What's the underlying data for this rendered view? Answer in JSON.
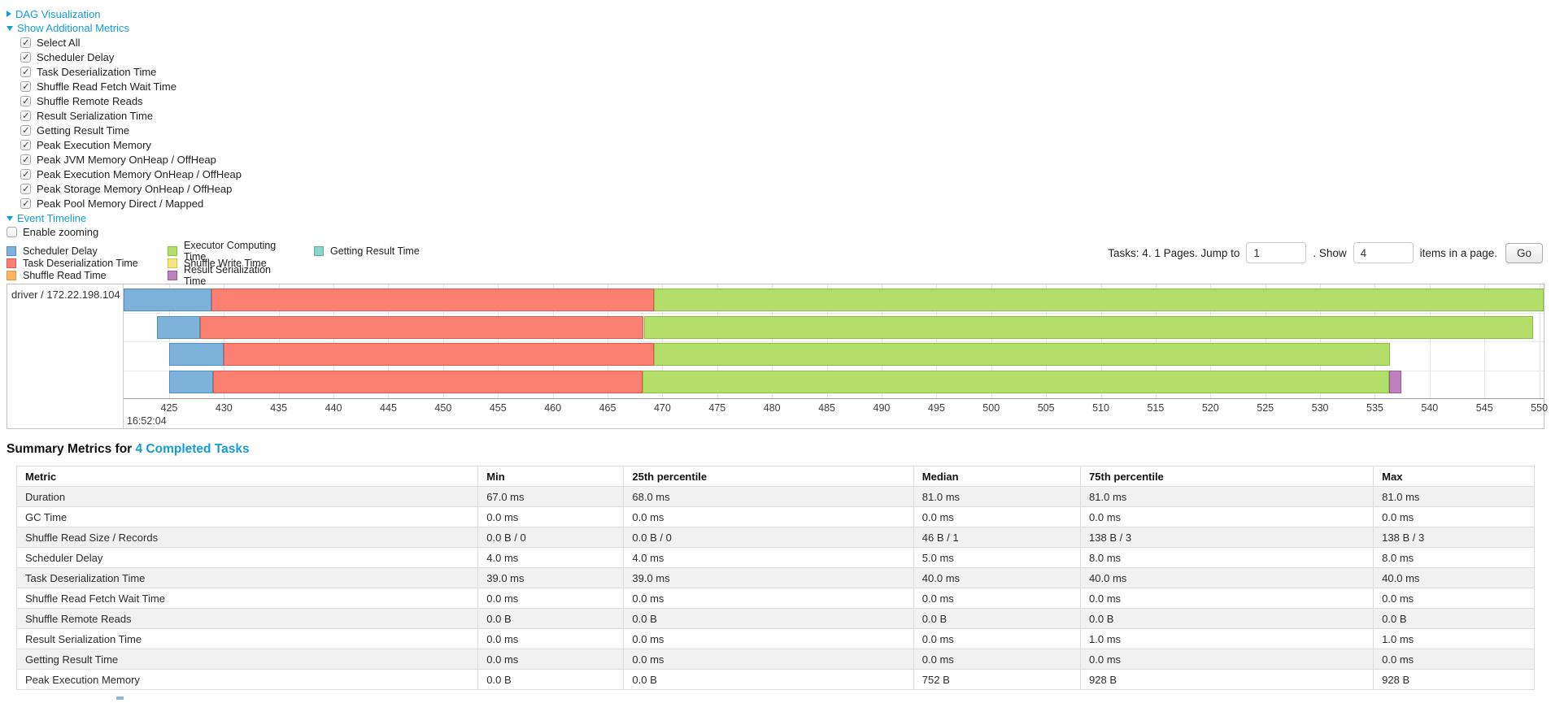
{
  "panel": {
    "dag_link": "DAG Visualization",
    "metrics_link": "Show Additional Metrics",
    "timeline_link": "Event Timeline",
    "metric_checkboxes": [
      {
        "label": "Select All",
        "checked": true
      },
      {
        "label": "Scheduler Delay",
        "checked": true
      },
      {
        "label": "Task Deserialization Time",
        "checked": true
      },
      {
        "label": "Shuffle Read Fetch Wait Time",
        "checked": true
      },
      {
        "label": "Shuffle Remote Reads",
        "checked": true
      },
      {
        "label": "Result Serialization Time",
        "checked": true
      },
      {
        "label": "Getting Result Time",
        "checked": true
      },
      {
        "label": "Peak Execution Memory",
        "checked": true
      },
      {
        "label": "Peak JVM Memory OnHeap / OffHeap",
        "checked": true
      },
      {
        "label": "Peak Execution Memory OnHeap / OffHeap",
        "checked": true
      },
      {
        "label": "Peak Storage Memory OnHeap / OffHeap",
        "checked": true
      },
      {
        "label": "Peak Pool Memory Direct / Mapped",
        "checked": true
      }
    ],
    "enable_zooming": {
      "label": "Enable zooming",
      "checked": false
    }
  },
  "legend": {
    "columns": [
      [
        {
          "key": "scheduler_delay",
          "label": "Scheduler Delay"
        },
        {
          "key": "task_deserialization",
          "label": "Task Deserialization Time"
        },
        {
          "key": "shuffle_read",
          "label": "Shuffle Read Time"
        }
      ],
      [
        {
          "key": "executor_computing",
          "label": "Executor Computing Time"
        },
        {
          "key": "shuffle_write",
          "label": "Shuffle Write Time"
        },
        {
          "key": "result_serialization",
          "label": "Result Serialization Time"
        }
      ],
      [
        {
          "key": "getting_result",
          "label": "Getting Result Time"
        }
      ]
    ],
    "colors": {
      "scheduler_delay": {
        "fill": "#7EB2D8",
        "border": "#4A90C2"
      },
      "task_deserialization": {
        "fill": "#FB8072",
        "border": "#E05A50"
      },
      "shuffle_read": {
        "fill": "#FDB462",
        "border": "#E89435"
      },
      "executor_computing": {
        "fill": "#B3DE69",
        "border": "#8CBE3F"
      },
      "shuffle_write": {
        "fill": "#F6E683",
        "border": "#D9C34A"
      },
      "result_serialization": {
        "fill": "#BC80BD",
        "border": "#9A5B9B"
      },
      "getting_result": {
        "fill": "#8DD3C7",
        "border": "#5FAE9F"
      }
    }
  },
  "pagination": {
    "tasks_text": "Tasks: 4. 1 Pages. Jump to",
    "jump_value": "1",
    "show_text": ". Show",
    "show_value": "4",
    "items_text": "items in a page.",
    "go_label": "Go"
  },
  "timeline": {
    "executor_label": "driver / 172.22.198.104",
    "axis": {
      "min": 420.85,
      "max": 550.4,
      "ticks": [
        425,
        430,
        435,
        440,
        445,
        450,
        455,
        460,
        465,
        470,
        475,
        480,
        485,
        490,
        495,
        500,
        505,
        510,
        515,
        520,
        525,
        530,
        535,
        540,
        545,
        550
      ],
      "base_time_label": "16:52:04"
    },
    "rows": [
      {
        "segments": [
          {
            "key": "scheduler_delay",
            "start": 420.85,
            "end": 428.9
          },
          {
            "key": "task_deserialization",
            "start": 428.9,
            "end": 469.2
          },
          {
            "key": "executor_computing",
            "start": 469.2,
            "end": 550.4
          }
        ]
      },
      {
        "segments": [
          {
            "key": "scheduler_delay",
            "start": 423.9,
            "end": 427.8
          },
          {
            "key": "task_deserialization",
            "start": 427.8,
            "end": 468.3
          },
          {
            "key": "executor_computing",
            "start": 468.3,
            "end": 549.4
          }
        ]
      },
      {
        "segments": [
          {
            "key": "scheduler_delay",
            "start": 425.0,
            "end": 430.0
          },
          {
            "key": "task_deserialization",
            "start": 430.0,
            "end": 469.2
          },
          {
            "key": "executor_computing",
            "start": 469.2,
            "end": 536.4
          }
        ]
      },
      {
        "segments": [
          {
            "key": "scheduler_delay",
            "start": 425.0,
            "end": 429.0
          },
          {
            "key": "task_deserialization",
            "start": 429.0,
            "end": 468.2
          },
          {
            "key": "executor_computing",
            "start": 468.2,
            "end": 536.3
          },
          {
            "key": "result_serialization",
            "start": 536.3,
            "end": 537.4
          }
        ]
      }
    ]
  },
  "summary": {
    "title_prefix": "Summary Metrics for ",
    "title_link": "4 Completed Tasks",
    "table": {
      "headers": [
        "Metric",
        "Min",
        "25th percentile",
        "Median",
        "75th percentile",
        "Max"
      ],
      "rows": [
        [
          "Duration",
          "67.0 ms",
          "68.0 ms",
          "81.0 ms",
          "81.0 ms",
          "81.0 ms"
        ],
        [
          "GC Time",
          "0.0 ms",
          "0.0 ms",
          "0.0 ms",
          "0.0 ms",
          "0.0 ms"
        ],
        [
          "Shuffle Read Size / Records",
          "0.0 B / 0",
          "0.0 B / 0",
          "46 B / 1",
          "138 B / 3",
          "138 B / 3"
        ],
        [
          "Scheduler Delay",
          "4.0 ms",
          "4.0 ms",
          "5.0 ms",
          "8.0 ms",
          "8.0 ms"
        ],
        [
          "Task Deserialization Time",
          "39.0 ms",
          "39.0 ms",
          "40.0 ms",
          "40.0 ms",
          "40.0 ms"
        ],
        [
          "Shuffle Read Fetch Wait Time",
          "0.0 ms",
          "0.0 ms",
          "0.0 ms",
          "0.0 ms",
          "0.0 ms"
        ],
        [
          "Shuffle Remote Reads",
          "0.0 B",
          "0.0 B",
          "0.0 B",
          "0.0 B",
          "0.0 B"
        ],
        [
          "Result Serialization Time",
          "0.0 ms",
          "0.0 ms",
          "0.0 ms",
          "1.0 ms",
          "1.0 ms"
        ],
        [
          "Getting Result Time",
          "0.0 ms",
          "0.0 ms",
          "0.0 ms",
          "0.0 ms",
          "0.0 ms"
        ],
        [
          "Peak Execution Memory",
          "0.0 B",
          "0.0 B",
          "752 B",
          "928 B",
          "928 B"
        ]
      ]
    }
  }
}
